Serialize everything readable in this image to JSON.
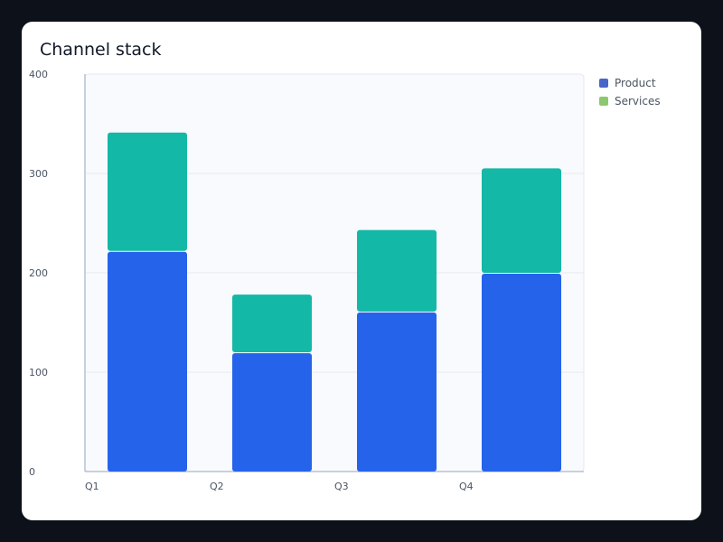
{
  "chart_data": {
    "type": "bar",
    "stacked": true,
    "title": "Channel stack",
    "xlabel": "",
    "ylabel": "",
    "categories": [
      "Q1",
      "Q2",
      "Q3",
      "Q4"
    ],
    "series": [
      {
        "name": "Product",
        "values": [
          222,
          120,
          161,
          200
        ],
        "color": "#2563eb",
        "legend_color": "#4766c8"
      },
      {
        "name": "Services",
        "values": [
          120,
          59,
          83,
          106
        ],
        "color": "#14b8a6",
        "legend_color": "#8cc86e"
      }
    ],
    "ylim": [
      0,
      400
    ],
    "yticks": [
      "0",
      "100",
      "200",
      "300",
      "400"
    ],
    "grid": true,
    "legend": "top-right"
  }
}
